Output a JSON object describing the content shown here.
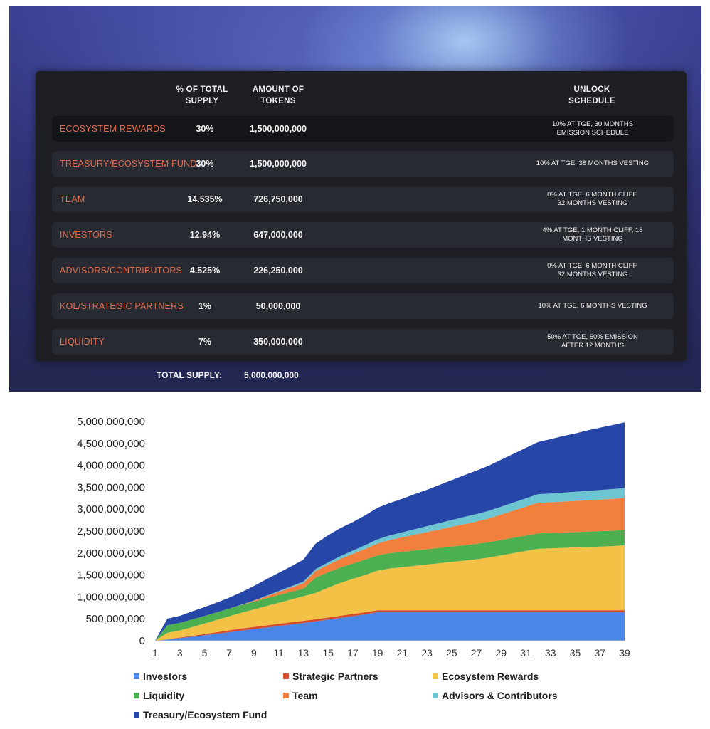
{
  "table": {
    "headers": {
      "pct_line1": "% OF TOTAL",
      "pct_line2": "SUPPLY",
      "amount_line1": "AMOUNT OF",
      "amount_line2": "TOKENS",
      "unlock_line1": "UNLOCK",
      "unlock_line2": "SCHEDULE"
    },
    "rows": [
      {
        "category": "ECOSYSTEM REWARDS",
        "pct": "30%",
        "amount": "1,500,000,000",
        "unlock1": "10% AT TGE, 30 MONTHS",
        "unlock2": "EMISSION SCHEDULE"
      },
      {
        "category": "TREASURY/ECOSYSTEM FUND",
        "pct": "30%",
        "amount": "1,500,000,000",
        "unlock1": "10% AT TGE, 38 MONTHS VESTING",
        "unlock2": ""
      },
      {
        "category": "TEAM",
        "pct": "14.535%",
        "amount": "726,750,000",
        "unlock1": "0% AT TGE, 6 MONTH CLIFF,",
        "unlock2": "32 MONTHS VESTING"
      },
      {
        "category": "INVESTORS",
        "pct": "12.94%",
        "amount": "647,000,000",
        "unlock1": "4% AT TGE, 1 MONTH CLIFF, 18",
        "unlock2": "MONTHS VESTING"
      },
      {
        "category": "ADVISORS/CONTRIBUTORS",
        "pct": "4.525%",
        "amount": "226,250,000",
        "unlock1": "0% AT TGE, 6 MONTH CLIFF,",
        "unlock2": "32 MONTHS VESTING"
      },
      {
        "category": "KOL/STRATEGIC PARTNERS",
        "pct": "1%",
        "amount": "50,000,000",
        "unlock1": "10% AT TGE, 6 MONTHS VESTING",
        "unlock2": ""
      },
      {
        "category": "LIQUIDITY",
        "pct": "7%",
        "amount": "350,000,000",
        "unlock1": "50% AT TGE,  50% EMISSION",
        "unlock2": "AFTER 12 MONTHS"
      }
    ],
    "total_label": "TOTAL SUPPLY:",
    "total_value": "5,000,000,000"
  },
  "chart_data": {
    "type": "area",
    "stacked": true,
    "x": [
      1,
      2,
      3,
      4,
      5,
      6,
      7,
      8,
      9,
      10,
      11,
      12,
      13,
      14,
      15,
      16,
      17,
      18,
      19,
      20,
      21,
      22,
      23,
      24,
      25,
      26,
      27,
      28,
      29,
      30,
      31,
      32,
      33,
      34,
      35,
      36,
      37,
      38,
      39
    ],
    "ylim": [
      0,
      5000000000
    ],
    "yticks": [
      0,
      500000000,
      1000000000,
      1500000000,
      2000000000,
      2500000000,
      3000000000,
      3500000000,
      4000000000,
      4500000000,
      5000000000
    ],
    "ytick_labels": [
      "0",
      "500,000,000",
      "1,000,000,000",
      "1,500,000,000",
      "2,000,000,000",
      "2,500,000,000",
      "3,000,000,000",
      "3,500,000,000",
      "4,000,000,000",
      "4,500,000,000",
      "5,000,000,000"
    ],
    "xtick_labels": [
      "1",
      "3",
      "5",
      "7",
      "9",
      "11",
      "13",
      "15",
      "17",
      "19",
      "21",
      "23",
      "25",
      "27",
      "29",
      "31",
      "33",
      "35",
      "37",
      "39"
    ],
    "grid": false,
    "legend_position": "bottom",
    "series": [
      {
        "name": "Investors",
        "color": "#4a86e8",
        "values": [
          0,
          26,
          60,
          90,
          125,
          160,
          195,
          230,
          265,
          300,
          335,
          370,
          405,
          440,
          480,
          520,
          560,
          600,
          647,
          647,
          647,
          647,
          647,
          647,
          647,
          647,
          647,
          647,
          647,
          647,
          647,
          647,
          647,
          647,
          647,
          647,
          647,
          647,
          647
        ]
      },
      {
        "name": "Strategic Partners",
        "color": "#d64c2b",
        "values": [
          0,
          5,
          13,
          20,
          27,
          35,
          43,
          50,
          50,
          50,
          50,
          50,
          50,
          50,
          50,
          50,
          50,
          50,
          50,
          50,
          50,
          50,
          50,
          50,
          50,
          50,
          50,
          50,
          50,
          50,
          50,
          50,
          50,
          50,
          50,
          50,
          50,
          50,
          50
        ]
      },
      {
        "name": "Ecosystem Rewards",
        "color": "#f3c146",
        "values": [
          0,
          150,
          160,
          200,
          240,
          280,
          320,
          360,
          400,
          440,
          480,
          520,
          560,
          600,
          680,
          750,
          800,
          850,
          900,
          950,
          980,
          1010,
          1040,
          1070,
          1100,
          1130,
          1160,
          1200,
          1250,
          1300,
          1350,
          1400,
          1410,
          1420,
          1430,
          1440,
          1450,
          1460,
          1480
        ]
      },
      {
        "name": "Liquidity",
        "color": "#4caf50",
        "values": [
          0,
          175,
          175,
          175,
          175,
          175,
          175,
          175,
          175,
          175,
          175,
          175,
          175,
          350,
          350,
          350,
          350,
          350,
          350,
          350,
          350,
          350,
          350,
          350,
          350,
          350,
          350,
          350,
          350,
          350,
          350,
          350,
          350,
          350,
          350,
          350,
          350,
          350,
          350
        ]
      },
      {
        "name": "Team",
        "color": "#f0803c",
        "values": [
          0,
          0,
          0,
          0,
          0,
          0,
          0,
          5,
          20,
          45,
          70,
          95,
          120,
          150,
          170,
          195,
          220,
          245,
          270,
          300,
          330,
          360,
          390,
          420,
          450,
          480,
          510,
          540,
          580,
          620,
          660,
          700,
          700,
          705,
          710,
          715,
          720,
          725,
          727
        ]
      },
      {
        "name": "Advisors & Contributors",
        "color": "#6cc5d1",
        "values": [
          0,
          0,
          0,
          0,
          0,
          0,
          0,
          2,
          8,
          15,
          22,
          30,
          38,
          45,
          55,
          65,
          75,
          85,
          95,
          105,
          115,
          125,
          135,
          145,
          155,
          165,
          170,
          175,
          180,
          185,
          190,
          195,
          200,
          205,
          210,
          215,
          220,
          225,
          226
        ]
      },
      {
        "name": "Treasury/Ecosystem Fund",
        "color": "#2646a8",
        "values": [
          0,
          150,
          159,
          185,
          200,
          220,
          250,
          285,
          330,
          375,
          415,
          455,
          500,
          580,
          620,
          640,
          650,
          680,
          720,
          740,
          765,
          800,
          830,
          870,
          910,
          950,
          990,
          1030,
          1070,
          1110,
          1150,
          1190,
          1240,
          1290,
          1330,
          1380,
          1420,
          1460,
          1500
        ]
      }
    ],
    "value_unit_note": ""
  }
}
